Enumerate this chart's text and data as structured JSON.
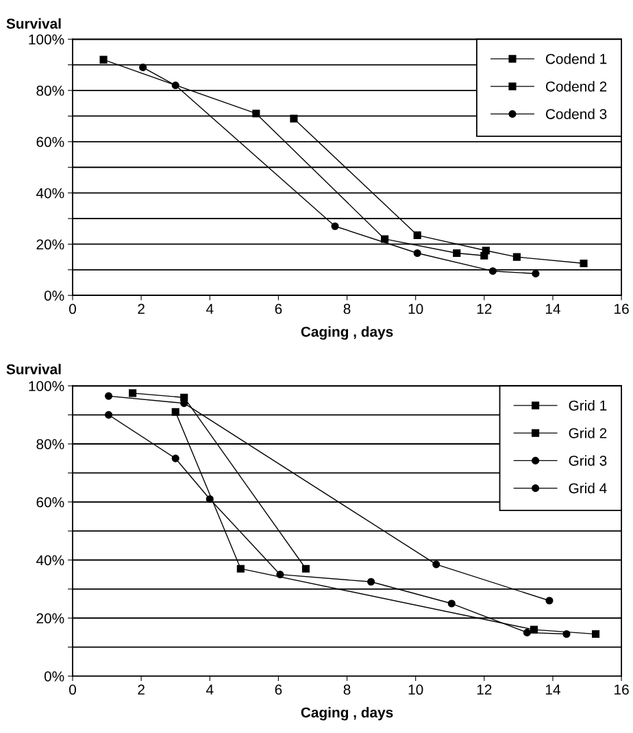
{
  "chart_data": [
    {
      "type": "line",
      "ylabel": "Survival",
      "xlabel": "Caging , days",
      "xlim": [
        0,
        16
      ],
      "xticks": [
        0,
        2,
        4,
        6,
        8,
        10,
        12,
        14,
        16
      ],
      "ylim": [
        0,
        100
      ],
      "yticks": [
        {
          "value": 0,
          "label": "0%"
        },
        {
          "value": 10,
          "label": null
        },
        {
          "value": 20,
          "label": "20%"
        },
        {
          "value": 30,
          "label": null
        },
        {
          "value": 40,
          "label": "40%"
        },
        {
          "value": 50,
          "label": null
        },
        {
          "value": 60,
          "label": "60%"
        },
        {
          "value": 70,
          "label": null
        },
        {
          "value": 80,
          "label": "80%"
        },
        {
          "value": 90,
          "label": null
        },
        {
          "value": 100,
          "label": "100%"
        }
      ],
      "grid": "y",
      "legend": "top right",
      "series": [
        {
          "name": "Codend 1",
          "color": "#000000",
          "marker": "square",
          "x": [
            0.9,
            5.35,
            9.1,
            11.2,
            12.0
          ],
          "values": [
            92,
            71,
            22,
            16.5,
            15.5
          ]
        },
        {
          "name": "Codend 2",
          "color": "#000000",
          "marker": "square",
          "x": [
            6.45,
            10.05,
            12.05,
            12.95,
            14.9
          ],
          "values": [
            69,
            23.5,
            17.5,
            15,
            12.5
          ]
        },
        {
          "name": "Codend 3",
          "color": "#000000",
          "marker": "circle",
          "x": [
            2.05,
            3.0,
            7.65,
            10.05,
            12.25,
            13.5
          ],
          "values": [
            89,
            82,
            27,
            16.5,
            9.5,
            8.5
          ]
        }
      ]
    },
    {
      "type": "line",
      "ylabel": "Survival",
      "xlabel": "Caging , days",
      "xlim": [
        0,
        16
      ],
      "xticks": [
        0,
        2,
        4,
        6,
        8,
        10,
        12,
        14,
        16
      ],
      "ylim": [
        0,
        100
      ],
      "yticks": [
        {
          "value": 0,
          "label": "0%"
        },
        {
          "value": 10,
          "label": null
        },
        {
          "value": 20,
          "label": "20%"
        },
        {
          "value": 30,
          "label": null
        },
        {
          "value": 40,
          "label": "40%"
        },
        {
          "value": 50,
          "label": null
        },
        {
          "value": 60,
          "label": "60%"
        },
        {
          "value": 70,
          "label": null
        },
        {
          "value": 80,
          "label": "80%"
        },
        {
          "value": 90,
          "label": null
        },
        {
          "value": 100,
          "label": "100%"
        }
      ],
      "grid": "y",
      "legend": "top right",
      "series": [
        {
          "name": "Grid 1",
          "color": "#000000",
          "marker": "square",
          "x": [
            1.75,
            3.25,
            6.8
          ],
          "values": [
            97.5,
            96,
            37
          ]
        },
        {
          "name": "Grid 2",
          "color": "#000000",
          "marker": "square",
          "x": [
            3.0,
            4.9,
            13.45,
            15.25
          ],
          "values": [
            91,
            37,
            16,
            14.5
          ]
        },
        {
          "name": "Grid 3",
          "color": "#000000",
          "marker": "circle",
          "x": [
            1.05,
            3.25,
            10.6,
            13.9
          ],
          "values": [
            96.5,
            94,
            38.5,
            26
          ]
        },
        {
          "name": "Grid 4",
          "color": "#000000",
          "marker": "circle",
          "x": [
            1.05,
            3.0,
            4.0,
            6.05,
            8.7,
            11.05,
            13.25,
            14.4
          ],
          "values": [
            90,
            75,
            61,
            35,
            32.5,
            25,
            15,
            14.5
          ]
        }
      ]
    }
  ]
}
